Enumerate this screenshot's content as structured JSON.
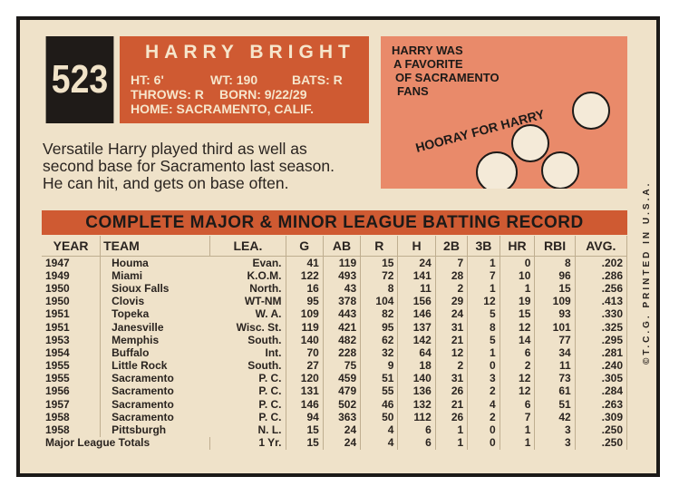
{
  "card": {
    "number": "523",
    "name": "HARRY BRIGHT",
    "ht": "HT: 6'",
    "wt": "WT: 190",
    "bats": "BATS: R",
    "throws": "THROWS: R",
    "born": "BORN: 9/22/29",
    "home": "HOME: SACRAMENTO, CALIF.",
    "bio": [
      "Versatile Harry played third as well as",
      "second base for Sacramento last season.",
      "He can hit, and gets on base often."
    ],
    "cartoon": {
      "caption": [
        "HARRY WAS",
        "A FAVORITE",
        "OF SACRAMENTO",
        "FANS"
      ],
      "cheer": "HOORAY FOR HARRY"
    },
    "side": "©T.C.G. PRINTED IN U.S.A."
  },
  "table": {
    "title": "COMPLETE MAJOR & MINOR LEAGUE BATTING RECORD",
    "headers": [
      "YEAR",
      "TEAM",
      "LEA.",
      "G",
      "AB",
      "R",
      "H",
      "2B",
      "3B",
      "HR",
      "RBI",
      "AVG."
    ],
    "rows": [
      [
        "1947",
        "Houma",
        "Evan.",
        "41",
        "119",
        "15",
        "24",
        "7",
        "1",
        "0",
        "8",
        ".202"
      ],
      [
        "1949",
        "Miami",
        "K.O.M.",
        "122",
        "493",
        "72",
        "141",
        "28",
        "7",
        "10",
        "96",
        ".286"
      ],
      [
        "1950",
        "Sioux Falls",
        "North.",
        "16",
        "43",
        "8",
        "11",
        "2",
        "1",
        "1",
        "15",
        ".256"
      ],
      [
        "1950",
        "Clovis",
        "WT-NM",
        "95",
        "378",
        "104",
        "156",
        "29",
        "12",
        "19",
        "109",
        ".413"
      ],
      [
        "1951",
        "Topeka",
        "W. A.",
        "109",
        "443",
        "82",
        "146",
        "24",
        "5",
        "15",
        "93",
        ".330"
      ],
      [
        "1951",
        "Janesville",
        "Wisc. St.",
        "119",
        "421",
        "95",
        "137",
        "31",
        "8",
        "12",
        "101",
        ".325"
      ],
      [
        "1953",
        "Memphis",
        "South.",
        "140",
        "482",
        "62",
        "142",
        "21",
        "5",
        "14",
        "77",
        ".295"
      ],
      [
        "1954",
        "Buffalo",
        "Int.",
        "70",
        "228",
        "32",
        "64",
        "12",
        "1",
        "6",
        "34",
        ".281"
      ],
      [
        "1955",
        "Little Rock",
        "South.",
        "27",
        "75",
        "9",
        "18",
        "2",
        "0",
        "2",
        "11",
        ".240"
      ],
      [
        "1955",
        "Sacramento",
        "P. C.",
        "120",
        "459",
        "51",
        "140",
        "31",
        "3",
        "12",
        "73",
        ".305"
      ],
      [
        "1956",
        "Sacramento",
        "P. C.",
        "131",
        "479",
        "55",
        "136",
        "26",
        "2",
        "12",
        "61",
        ".284"
      ],
      [
        "1957",
        "Sacramento",
        "P. C.",
        "146",
        "502",
        "46",
        "132",
        "21",
        "4",
        "6",
        "51",
        ".263"
      ],
      [
        "1958",
        "Sacramento",
        "P. C.",
        "94",
        "363",
        "50",
        "112",
        "26",
        "2",
        "7",
        "42",
        ".309"
      ],
      [
        "1958",
        "Pittsburgh",
        "N. L.",
        "15",
        "24",
        "4",
        "6",
        "1",
        "0",
        "1",
        "3",
        ".250"
      ],
      [
        "Major League Totals",
        "",
        "1 Yr.",
        "15",
        "24",
        "4",
        "6",
        "1",
        "0",
        "1",
        "3",
        ".250"
      ]
    ]
  }
}
